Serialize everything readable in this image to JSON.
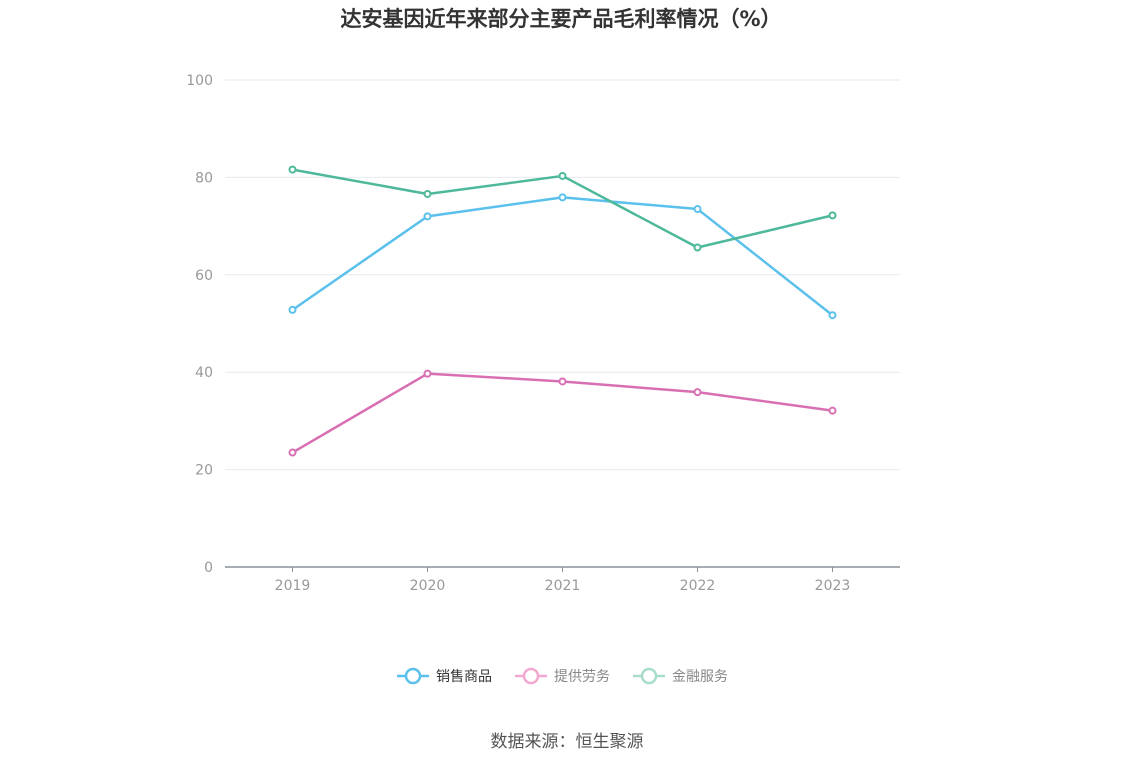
{
  "chart_data": {
    "type": "line",
    "title": "达安基因近年来部分主要产品毛利率情况（%）",
    "xlabel": "",
    "ylabel": "",
    "categories": [
      "2019",
      "2020",
      "2021",
      "2022",
      "2023"
    ],
    "ylim": [
      0,
      100
    ],
    "yticks": [
      "0",
      "20",
      "40",
      "60",
      "80",
      "100"
    ],
    "grid": true,
    "legend_position": "bottom",
    "series": [
      {
        "name": "销售商品",
        "color": "#5bc0eb",
        "values": [
          52.8,
          72.0,
          75.9,
          73.5,
          51.7
        ]
      },
      {
        "name": "提供劳务",
        "color": "#d96fb3",
        "values": [
          23.5,
          39.7,
          38.1,
          35.9,
          32.1
        ]
      },
      {
        "name": "金融服务",
        "color": "#4db89a",
        "values": [
          81.6,
          76.6,
          80.3,
          65.6,
          72.2
        ]
      }
    ],
    "legend_colors": [
      "#5bc0eb",
      "#f2a8d0",
      "#a8dccb"
    ],
    "source": "数据来源：恒生聚源"
  }
}
